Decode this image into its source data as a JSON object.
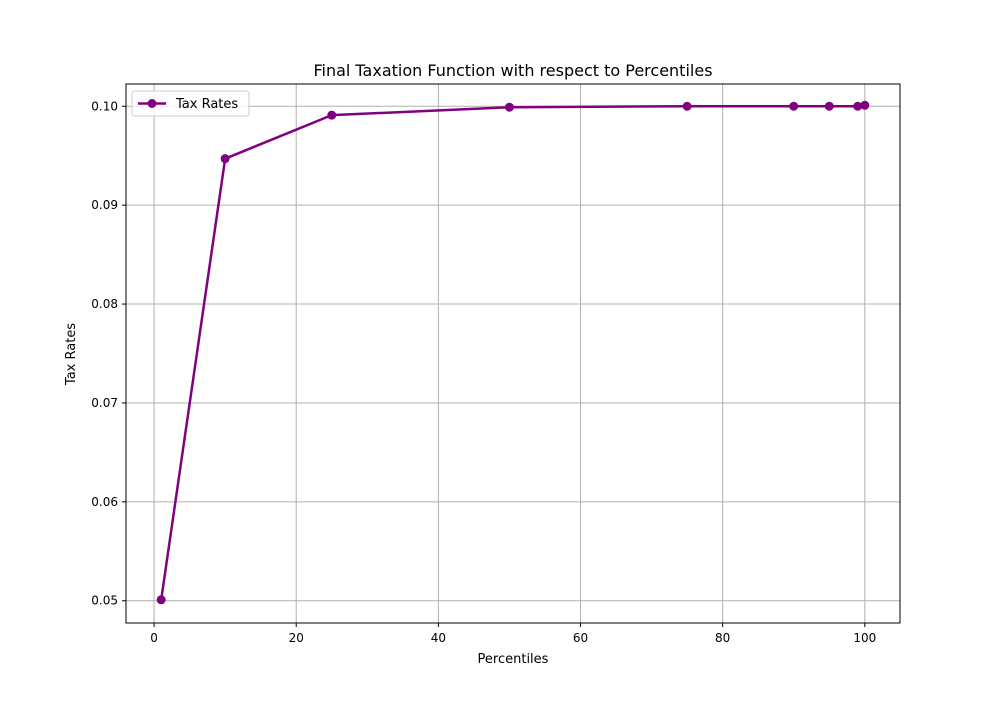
{
  "chart_data": {
    "type": "line",
    "title": "Final Taxation Function with respect to Percentiles",
    "xlabel": "Percentiles",
    "ylabel": "Tax Rates",
    "xlim": [
      -3.95,
      104.95
    ],
    "ylim": [
      0.04775,
      0.10225
    ],
    "x_ticks": [
      0,
      20,
      40,
      60,
      80,
      100
    ],
    "x_tick_labels": [
      "0",
      "20",
      "40",
      "60",
      "80",
      "100"
    ],
    "y_ticks": [
      0.05,
      0.06,
      0.07,
      0.08,
      0.09,
      0.1
    ],
    "y_tick_labels": [
      "0.05",
      "0.06",
      "0.07",
      "0.08",
      "0.09",
      "0.10"
    ],
    "grid": true,
    "legend_position": "top-left",
    "series": [
      {
        "name": "Tax Rates",
        "color": "#800080",
        "marker": "circle",
        "x": [
          1,
          10,
          25,
          50,
          75,
          90,
          95,
          99,
          100
        ],
        "y": [
          0.0501,
          0.0947,
          0.0991,
          0.0999,
          0.1,
          0.1,
          0.1,
          0.1,
          0.1001
        ]
      }
    ]
  }
}
